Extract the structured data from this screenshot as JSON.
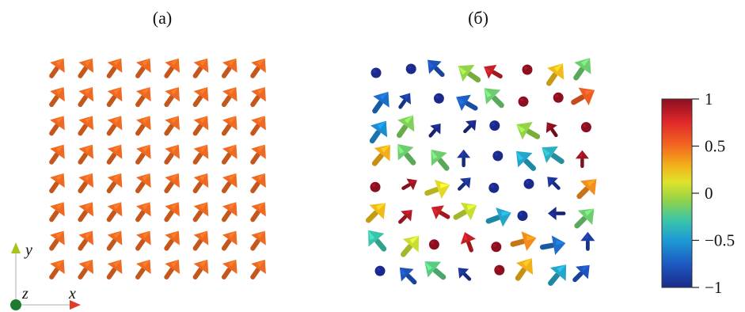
{
  "panels": [
    {
      "label": "(a)"
    },
    {
      "label": "(б)"
    }
  ],
  "axes": {
    "y_label": "y",
    "z_label": "z",
    "x_label": "x",
    "y_color": "#a9c21c",
    "z_color": "#1e7a2e",
    "x_color": "#e03a2a"
  },
  "colorbar": {
    "ticks": [
      "1",
      "0.5",
      "0",
      "−0.5",
      "−1"
    ],
    "values": [
      1,
      0.5,
      0,
      -0.5,
      -1
    ],
    "colors": [
      "#8b0f1f",
      "#e0262a",
      "#f36a20",
      "#f2b51a",
      "#dfe22a",
      "#8fd24a",
      "#3cc7a6",
      "#1d9ad6",
      "#1d57c0",
      "#1b2a8a"
    ]
  },
  "uniform_field": {
    "rows": 8,
    "cols": 8,
    "color": "#ee6a22",
    "direction": "up-right"
  },
  "disordered_field": {
    "arrows": [
      {
        "r": 0,
        "c": 0,
        "a": 0,
        "v": -1.0
      },
      {
        "r": 0,
        "c": 1,
        "a": 0,
        "v": -1.0
      },
      {
        "r": 0,
        "c": 2,
        "a": -45,
        "v": -0.8
      },
      {
        "r": 0,
        "c": 3,
        "a": -55,
        "v": -0.1
      },
      {
        "r": 0,
        "c": 4,
        "a": -60,
        "v": 0.85
      },
      {
        "r": 0,
        "c": 5,
        "a": 0,
        "v": 1.0
      },
      {
        "r": 0,
        "c": 6,
        "a": 35,
        "v": 0.3
      },
      {
        "r": 0,
        "c": 7,
        "a": 35,
        "v": -0.2
      },
      {
        "r": 1,
        "c": 0,
        "a": 35,
        "v": -0.7
      },
      {
        "r": 1,
        "c": 1,
        "a": 35,
        "v": -0.9
      },
      {
        "r": 1,
        "c": 2,
        "a": 0,
        "v": -1.0
      },
      {
        "r": 1,
        "c": 3,
        "a": -60,
        "v": -0.75
      },
      {
        "r": 1,
        "c": 4,
        "a": -45,
        "v": -0.2
      },
      {
        "r": 1,
        "c": 5,
        "a": 0,
        "v": 1.0
      },
      {
        "r": 1,
        "c": 6,
        "a": 0,
        "v": 1.0
      },
      {
        "r": 1,
        "c": 7,
        "a": 60,
        "v": 0.6
      },
      {
        "r": 2,
        "c": 0,
        "a": 35,
        "v": -0.6
      },
      {
        "r": 2,
        "c": 1,
        "a": 35,
        "v": -0.15
      },
      {
        "r": 2,
        "c": 2,
        "a": 40,
        "v": -1.0
      },
      {
        "r": 2,
        "c": 3,
        "a": 45,
        "v": -1.0
      },
      {
        "r": 2,
        "c": 4,
        "a": 0,
        "v": -1.0
      },
      {
        "r": 2,
        "c": 5,
        "a": -60,
        "v": -0.1
      },
      {
        "r": 2,
        "c": 6,
        "a": -35,
        "v": 1.0
      },
      {
        "r": 2,
        "c": 7,
        "a": 0,
        "v": 1.0
      },
      {
        "r": 3,
        "c": 0,
        "a": 40,
        "v": 0.35
      },
      {
        "r": 3,
        "c": 1,
        "a": -40,
        "v": -0.2
      },
      {
        "r": 3,
        "c": 2,
        "a": -40,
        "v": -0.2
      },
      {
        "r": 3,
        "c": 3,
        "a": 0,
        "v": -0.95
      },
      {
        "r": 3,
        "c": 4,
        "a": 0,
        "v": -1.0
      },
      {
        "r": 3,
        "c": 5,
        "a": -45,
        "v": -0.5
      },
      {
        "r": 3,
        "c": 6,
        "a": -55,
        "v": -0.45
      },
      {
        "r": 3,
        "c": 7,
        "a": 0,
        "v": 0.95
      },
      {
        "r": 4,
        "c": 0,
        "a": 0,
        "v": 1.0
      },
      {
        "r": 4,
        "c": 1,
        "a": 60,
        "v": 0.95
      },
      {
        "r": 4,
        "c": 2,
        "a": 70,
        "v": 0.15
      },
      {
        "r": 4,
        "c": 3,
        "a": 45,
        "v": -0.95
      },
      {
        "r": 4,
        "c": 4,
        "a": 0,
        "v": -1.0
      },
      {
        "r": 4,
        "c": 5,
        "a": 0,
        "v": -1.0
      },
      {
        "r": 4,
        "c": 6,
        "a": -45,
        "v": -0.95
      },
      {
        "r": 4,
        "c": 7,
        "a": 45,
        "v": 0.45
      },
      {
        "r": 5,
        "c": 0,
        "a": 45,
        "v": 0.3
      },
      {
        "r": 5,
        "c": 1,
        "a": 45,
        "v": 0.9
      },
      {
        "r": 5,
        "c": 2,
        "a": -60,
        "v": 0.85
      },
      {
        "r": 5,
        "c": 3,
        "a": 60,
        "v": 0.05
      },
      {
        "r": 5,
        "c": 4,
        "a": 70,
        "v": -0.5
      },
      {
        "r": 5,
        "c": 5,
        "a": 0,
        "v": -1.0
      },
      {
        "r": 5,
        "c": 6,
        "a": -90,
        "v": -1.0
      },
      {
        "r": 5,
        "c": 7,
        "a": 45,
        "v": -0.2
      },
      {
        "r": 6,
        "c": 0,
        "a": -40,
        "v": -0.35
      },
      {
        "r": 6,
        "c": 1,
        "a": 40,
        "v": 0.05
      },
      {
        "r": 6,
        "c": 2,
        "a": 0,
        "v": 1.0
      },
      {
        "r": 6,
        "c": 3,
        "a": -20,
        "v": 0.85
      },
      {
        "r": 6,
        "c": 4,
        "a": 0,
        "v": 1.0
      },
      {
        "r": 6,
        "c": 5,
        "a": 75,
        "v": 0.45
      },
      {
        "r": 6,
        "c": 6,
        "a": 80,
        "v": -0.7
      },
      {
        "r": 6,
        "c": 7,
        "a": 0,
        "v": -0.9
      },
      {
        "r": 7,
        "c": 0,
        "a": 0,
        "v": -1.0
      },
      {
        "r": 7,
        "c": 1,
        "a": -45,
        "v": -0.8
      },
      {
        "r": 7,
        "c": 2,
        "a": -50,
        "v": -0.25
      },
      {
        "r": 7,
        "c": 3,
        "a": -45,
        "v": -0.95
      },
      {
        "r": 7,
        "c": 4,
        "a": 0,
        "v": 1.0
      },
      {
        "r": 7,
        "c": 5,
        "a": 35,
        "v": 0.35
      },
      {
        "r": 7,
        "c": 6,
        "a": 40,
        "v": -0.5
      },
      {
        "r": 7,
        "c": 7,
        "a": 45,
        "v": -0.8
      }
    ]
  }
}
